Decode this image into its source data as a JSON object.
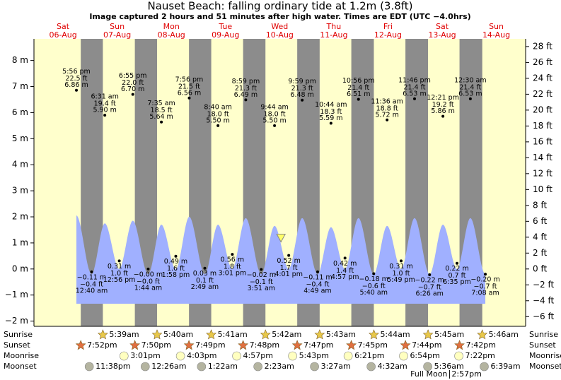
{
  "chart_data": {
    "type": "tide",
    "title": "Nauset Beach: falling  ordinary tide at 1.2m (3.8ft)",
    "subtitle": "Image captured 2 hours and 51 minutes after high water. Times are EDT (UTC −4.0hrs)",
    "ylim": [
      -2.2,
      8.83
    ],
    "yticks": [
      {
        "value": -2,
        "label": "−2 m"
      },
      {
        "value": -1,
        "label": "−1 m"
      },
      {
        "value": 0,
        "label": "0 m"
      },
      {
        "value": 1,
        "label": "1 m"
      },
      {
        "value": 2,
        "label": "2 m"
      },
      {
        "value": 3,
        "label": "3 m"
      },
      {
        "value": 4,
        "label": "4 m"
      },
      {
        "value": 5,
        "label": "5 m"
      },
      {
        "value": 6,
        "label": "6 m"
      },
      {
        "value": 7,
        "label": "7 m"
      },
      {
        "value": 8,
        "label": "8 m"
      }
    ],
    "y2lim": [
      -7.22,
      28.97
    ],
    "y2ticks": [
      {
        "value": -6,
        "label": "−6 ft"
      },
      {
        "value": -4,
        "label": "−4 ft"
      },
      {
        "value": -2,
        "label": "−2 ft"
      },
      {
        "value": 0,
        "label": "0 ft"
      },
      {
        "value": 2,
        "label": "2 ft"
      },
      {
        "value": 4,
        "label": "4 ft"
      },
      {
        "value": 6,
        "label": "6 ft"
      },
      {
        "value": 8,
        "label": "8 ft"
      },
      {
        "value": 10,
        "label": "10 ft"
      },
      {
        "value": 12,
        "label": "12 ft"
      },
      {
        "value": 14,
        "label": "14 ft"
      },
      {
        "value": 16,
        "label": "16 ft"
      },
      {
        "value": 18,
        "label": "18 ft"
      },
      {
        "value": 20,
        "label": "20 ft"
      },
      {
        "value": 22,
        "label": "22 ft"
      },
      {
        "value": 24,
        "label": "24 ft"
      },
      {
        "value": 26,
        "label": "26 ft"
      },
      {
        "value": 28,
        "label": "28 ft"
      }
    ],
    "days": [
      {
        "day": "Sat",
        "date": "06-Aug"
      },
      {
        "day": "Sun",
        "date": "07-Aug"
      },
      {
        "day": "Mon",
        "date": "08-Aug"
      },
      {
        "day": "Tue",
        "date": "09-Aug"
      },
      {
        "day": "Wed",
        "date": "10-Aug"
      },
      {
        "day": "Thu",
        "date": "11-Aug"
      },
      {
        "day": "Fri",
        "date": "12-Aug"
      },
      {
        "day": "Sat",
        "date": "13-Aug"
      },
      {
        "day": "Sun",
        "date": "14-Aug"
      }
    ],
    "curve_color": "#a0b0ff",
    "current": {
      "hour": 108.58,
      "m": 1.2
    },
    "tides": [
      {
        "kind": "high",
        "hour": 17.93,
        "time": "5:56 pm",
        "ft": 22.5,
        "ft_label": "22.5 ft",
        "m": 6.86,
        "m_label": "6.86 m",
        "curve_m": 2.05
      },
      {
        "kind": "low",
        "hour": 24.67,
        "time": "12:40 am",
        "ft": -0.4,
        "ft_label": "−0.4 ft",
        "m": -0.11,
        "m_label": "−0.11 m",
        "curve_m": -0.2
      },
      {
        "kind": "high",
        "hour": 30.52,
        "time": "6:31 am",
        "ft": 19.4,
        "ft_label": "19.4 ft",
        "m": 5.9,
        "m_label": "5.90 m",
        "curve_m": 1.75
      },
      {
        "kind": "low",
        "hour": 36.93,
        "time": "12:56 pm",
        "ft": 1.0,
        "ft_label": "1.0 ft",
        "m": 0.31,
        "m_label": "0.31 m",
        "curve_m": 0.0
      },
      {
        "kind": "high",
        "hour": 42.92,
        "time": "6:55 pm",
        "ft": 22.0,
        "ft_label": "22.0 ft",
        "m": 6.7,
        "m_label": "6.70 m",
        "curve_m": 1.85
      },
      {
        "kind": "low",
        "hour": 49.73,
        "time": "1:44 am",
        "ft": 0,
        "ft_label": "−0.0 ft",
        "m": 0,
        "m_label": "−0.00 m",
        "curve_m": -0.2
      },
      {
        "kind": "high",
        "hour": 55.58,
        "time": "7:35 am",
        "ft": 18.5,
        "ft_label": "18.5 ft",
        "m": 5.64,
        "m_label": "5.64 m",
        "curve_m": 1.7
      },
      {
        "kind": "low",
        "hour": 61.97,
        "time": "1:58 pm",
        "ft": 1.6,
        "ft_label": "1.6 ft",
        "m": 0.49,
        "m_label": "0.49 m",
        "curve_m": 0.0
      },
      {
        "kind": "high",
        "hour": 67.93,
        "time": "7:56 pm",
        "ft": 21.5,
        "ft_label": "21.5 ft",
        "m": 6.56,
        "m_label": "6.56 m",
        "curve_m": 2.0
      },
      {
        "kind": "low",
        "hour": 74.82,
        "time": "2:49 am",
        "ft": 0.1,
        "ft_label": "0.1 ft",
        "m": 0.03,
        "m_label": "0.03 m",
        "curve_m": -0.2
      },
      {
        "kind": "high",
        "hour": 80.67,
        "time": "8:40 am",
        "ft": 18.0,
        "ft_label": "18.0 ft",
        "m": 5.5,
        "m_label": "5.50 m",
        "curve_m": 1.7
      },
      {
        "kind": "low",
        "hour": 87.02,
        "time": "3:01 pm",
        "ft": 1.8,
        "ft_label": "1.8 ft",
        "m": 0.56,
        "m_label": "0.56 m",
        "curve_m": 0.0
      },
      {
        "kind": "high",
        "hour": 92.98,
        "time": "8:59 pm",
        "ft": 21.3,
        "ft_label": "21.3 ft",
        "m": 6.49,
        "m_label": "6.49 m",
        "curve_m": 1.95
      },
      {
        "kind": "low",
        "hour": 99.85,
        "time": "3:51 am",
        "ft": -0.1,
        "ft_label": "−0.1 ft",
        "m": -0.02,
        "m_label": "−0.02 m",
        "curve_m": -0.2
      },
      {
        "kind": "high",
        "hour": 105.73,
        "time": "9:44 am",
        "ft": 18.0,
        "ft_label": "18.0 ft",
        "m": 5.5,
        "m_label": "5.50 m",
        "curve_m": 1.65
      },
      {
        "kind": "low",
        "hour": 112.02,
        "time": "4:01 pm",
        "ft": 1.7,
        "ft_label": "1.7 ft",
        "m": 0.52,
        "m_label": "0.52 m",
        "curve_m": 0.0
      },
      {
        "kind": "high",
        "hour": 117.98,
        "time": "9:59 pm",
        "ft": 21.3,
        "ft_label": "21.3 ft",
        "m": 6.48,
        "m_label": "6.48 m",
        "curve_m": 1.95
      },
      {
        "kind": "low",
        "hour": 124.82,
        "time": "4:49 am",
        "ft": -0.4,
        "ft_label": "−0.4 ft",
        "m": -0.11,
        "m_label": "−0.11 m",
        "curve_m": -0.2
      },
      {
        "kind": "high",
        "hour": 130.73,
        "time": "10:44 am",
        "ft": 18.3,
        "ft_label": "18.3 ft",
        "m": 5.59,
        "m_label": "5.59 m",
        "curve_m": 1.6
      },
      {
        "kind": "low",
        "hour": 136.95,
        "time": "4:57 pm",
        "ft": 1.4,
        "ft_label": "1.4 ft",
        "m": 0.42,
        "m_label": "0.42 m",
        "curve_m": 0.0
      },
      {
        "kind": "high",
        "hour": 142.93,
        "time": "10:56 pm",
        "ft": 21.4,
        "ft_label": "21.4 ft",
        "m": 6.51,
        "m_label": "6.51 m",
        "curve_m": 1.95
      },
      {
        "kind": "low",
        "hour": 149.67,
        "time": "5:40 am",
        "ft": -0.6,
        "ft_label": "−0.6 ft",
        "m": -0.18,
        "m_label": "−0.18 m",
        "curve_m": -0.2
      },
      {
        "kind": "high",
        "hour": 155.6,
        "time": "11:36 am",
        "ft": 18.8,
        "ft_label": "18.8 ft",
        "m": 5.72,
        "m_label": "5.72 m",
        "curve_m": 1.65
      },
      {
        "kind": "low",
        "hour": 161.82,
        "time": "5:49 pm",
        "ft": 1.0,
        "ft_label": "1.0 ft",
        "m": 0.31,
        "m_label": "0.31 m",
        "curve_m": 0.0
      },
      {
        "kind": "high",
        "hour": 167.77,
        "time": "11:46 pm",
        "ft": 21.4,
        "ft_label": "21.4 ft",
        "m": 6.53,
        "m_label": "6.53 m",
        "curve_m": 1.95
      },
      {
        "kind": "low",
        "hour": 174.43,
        "time": "6:26 am",
        "ft": -0.7,
        "ft_label": "−0.7 ft",
        "m": -0.22,
        "m_label": "−0.22 m",
        "curve_m": -0.2
      },
      {
        "kind": "high",
        "hour": 180.35,
        "time": "12:21 pm",
        "ft": 19.2,
        "ft_label": "19.2 ft",
        "m": 5.86,
        "m_label": "5.86 m",
        "curve_m": 1.7
      },
      {
        "kind": "low",
        "hour": 186.58,
        "time": "6:35 pm",
        "ft": 0.7,
        "ft_label": "0.7 ft",
        "m": 0.22,
        "m_label": "0.22 m",
        "curve_m": 0.0
      },
      {
        "kind": "high",
        "hour": 192.5,
        "time": "12:30 am",
        "ft": 21.4,
        "ft_label": "21.4 ft",
        "m": 6.53,
        "m_label": "6.53 m",
        "curve_m": 1.95
      },
      {
        "kind": "low",
        "hour": 199.13,
        "time": "7:08 am",
        "ft": -0.7,
        "ft_label": "−0.7 ft",
        "m": -0.2,
        "m_label": "−0.20 m",
        "curve_m": -0.2
      }
    ],
    "row_labels": [
      "Sunrise",
      "Sunset",
      "Moonrise",
      "Moonset"
    ],
    "sunrise": [
      {
        "hour": 29.65,
        "time": "5:39am"
      },
      {
        "hour": 53.67,
        "time": "5:40am"
      },
      {
        "hour": 77.68,
        "time": "5:41am"
      },
      {
        "hour": 101.7,
        "time": "5:42am"
      },
      {
        "hour": 125.72,
        "time": "5:43am"
      },
      {
        "hour": 149.73,
        "time": "5:44am"
      },
      {
        "hour": 173.75,
        "time": "5:45am"
      },
      {
        "hour": 197.77,
        "time": "5:46am"
      }
    ],
    "sunset": [
      {
        "hour": 19.87,
        "time": "7:52pm"
      },
      {
        "hour": 43.83,
        "time": "7:50pm"
      },
      {
        "hour": 67.82,
        "time": "7:49pm"
      },
      {
        "hour": 91.8,
        "time": "7:48pm"
      },
      {
        "hour": 115.78,
        "time": "7:47pm"
      },
      {
        "hour": 139.75,
        "time": "7:45pm"
      },
      {
        "hour": 163.73,
        "time": "7:44pm"
      },
      {
        "hour": 187.7,
        "time": "7:42pm"
      }
    ],
    "moonrise": [
      {
        "hour": 39.02,
        "time": "3:01pm"
      },
      {
        "hour": 64.05,
        "time": "4:03pm"
      },
      {
        "hour": 88.95,
        "time": "4:57pm"
      },
      {
        "hour": 113.72,
        "time": "5:43pm"
      },
      {
        "hour": 138.35,
        "time": "6:21pm"
      },
      {
        "hour": 162.9,
        "time": "6:54pm"
      },
      {
        "hour": 187.37,
        "time": "7:22pm"
      }
    ],
    "moonset": [
      {
        "hour": 23.63,
        "time": "11:38pm"
      },
      {
        "hour": 48.43,
        "time": "12:26am"
      },
      {
        "hour": 73.37,
        "time": "1:22am"
      },
      {
        "hour": 98.38,
        "time": "2:23am"
      },
      {
        "hour": 123.45,
        "time": "3:27am"
      },
      {
        "hour": 148.53,
        "time": "4:32am"
      },
      {
        "hour": 173.6,
        "time": "5:36am"
      },
      {
        "hour": 198.65,
        "time": "6:39am"
      }
    ],
    "full_moon": {
      "label": "Full Moon",
      "time": "2:57pm",
      "hour": 182.95
    }
  }
}
